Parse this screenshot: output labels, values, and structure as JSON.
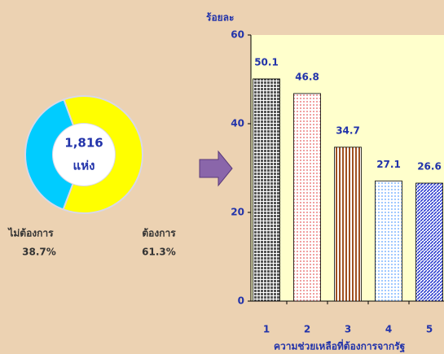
{
  "chart_data": [
    {
      "type": "donut",
      "center_label": [
        "1,816",
        "แห่ง"
      ],
      "categories": [
        "ไม่ต้องการ",
        "ต้องการ"
      ],
      "values": [
        38.7,
        61.3
      ],
      "value_labels": [
        "38.7%",
        "61.3%"
      ],
      "colors": [
        "#00ccff",
        "#ffff00"
      ]
    },
    {
      "type": "bar",
      "ylabel": "ร้อยละ",
      "xlabel": "ความช่วยเหลือที่ต้องการจากรัฐ",
      "categories": [
        "1",
        "2",
        "3",
        "4",
        "5"
      ],
      "values": [
        50.1,
        46.8,
        34.7,
        27.1,
        26.6
      ],
      "colors": [
        "#555555",
        "#f0a0a0",
        "#a05020",
        "#a0c8ff",
        "#2233cc"
      ],
      "ylim": [
        0,
        60
      ],
      "yticks": [
        0,
        20,
        40,
        60
      ]
    }
  ]
}
